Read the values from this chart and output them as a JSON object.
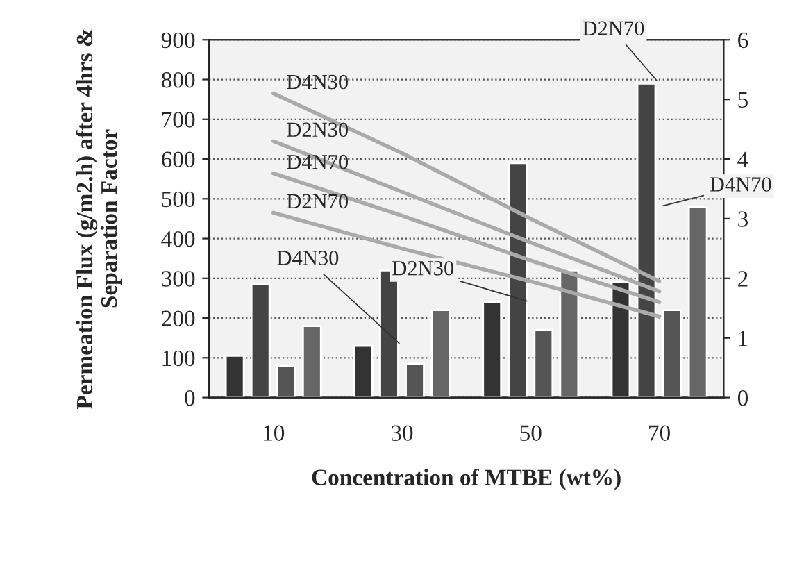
{
  "chart_data": {
    "type": "bar",
    "xlabel": "Concentration of MTBE (wt%)",
    "ylabel": "Permeation Flux (g/m2.h) after 4hrs & Separation Factor",
    "categories": [
      "10",
      "30",
      "50",
      "70"
    ],
    "ylim": [
      0,
      900
    ],
    "yticks": [
      0,
      100,
      200,
      300,
      400,
      500,
      600,
      700,
      800,
      900
    ],
    "y2lim": [
      0,
      6
    ],
    "y2ticks": [
      0,
      1,
      2,
      3,
      4,
      5,
      6
    ],
    "grid": "y",
    "legend": false,
    "series": [
      {
        "color": "#333333",
        "values": [
          105,
          130,
          240,
          290
        ]
      },
      {
        "color": "#444444",
        "values": [
          285,
          320,
          590,
          790
        ]
      },
      {
        "color": "#555555",
        "values": [
          80,
          85,
          170,
          220
        ]
      },
      {
        "color": "#666666",
        "values": [
          180,
          220,
          320,
          480
        ]
      },
      {
        "type": "line",
        "axis": "y2",
        "name": "D4N30",
        "color": "#aaaaaa",
        "values": [
          5.1,
          4.1,
          3.0,
          1.95
        ]
      },
      {
        "type": "line",
        "axis": "y2",
        "name": "D2N30",
        "color": "#aaaaaa",
        "values": [
          4.3,
          3.45,
          2.6,
          1.78
        ]
      },
      {
        "type": "line",
        "axis": "y2",
        "name": "D4N70",
        "color": "#aaaaaa",
        "values": [
          3.76,
          3.05,
          2.3,
          1.6
        ]
      },
      {
        "type": "line",
        "axis": "y2",
        "name": "D2N70",
        "color": "#aaaaaa",
        "values": [
          3.1,
          2.5,
          1.95,
          1.36
        ]
      }
    ],
    "annotations": [
      {
        "text": "D4N30",
        "x": "30",
        "y": 130
      },
      {
        "text": "D2N30",
        "x": "50",
        "y": 240
      },
      {
        "text": "D2N70",
        "x": "70",
        "y": 790
      },
      {
        "text": "D4N70",
        "x": "70",
        "y": 480
      }
    ]
  }
}
